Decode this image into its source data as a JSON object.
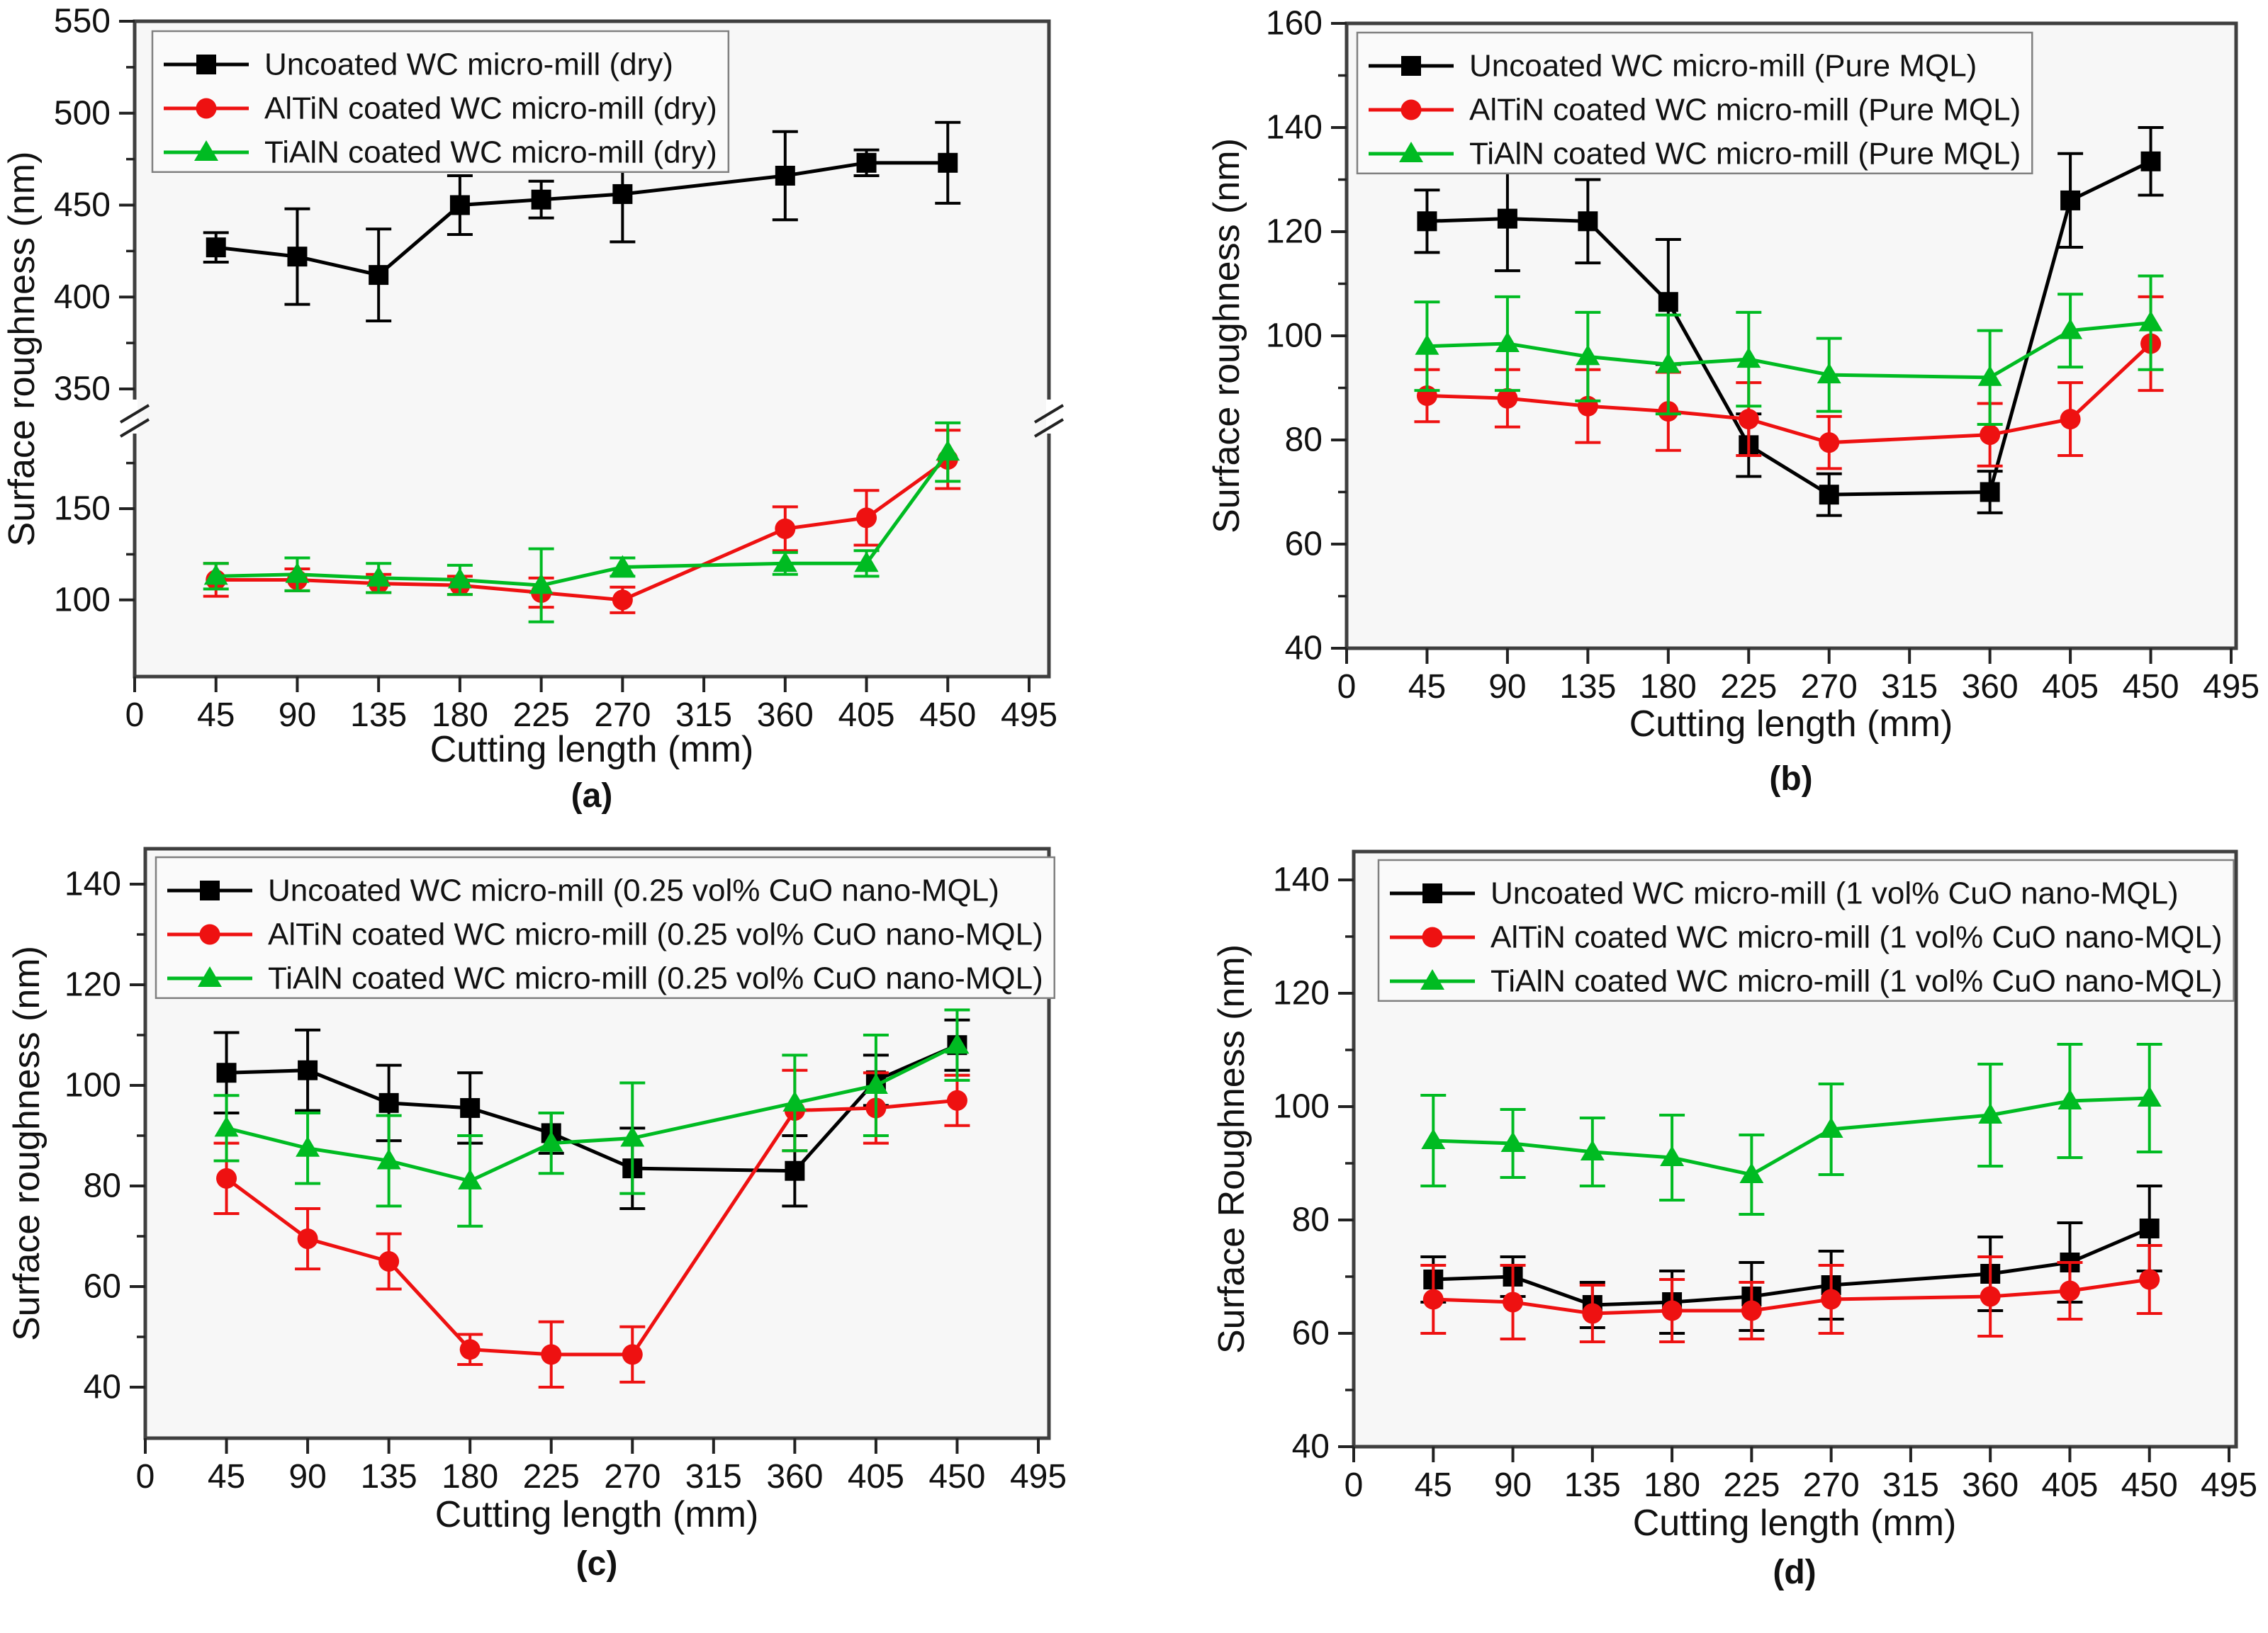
{
  "colors": {
    "black": "#000000",
    "red": "#ee1111",
    "green": "#00bb22",
    "frame": "#3f3f3f",
    "tick": "#222222",
    "text": "#111111",
    "plot_bg": "#f7f7f7",
    "legend_bg": "#fafafa",
    "legend_border": "#808080"
  },
  "chart_data": [
    {
      "id": "a",
      "type": "line",
      "caption": "(a)",
      "xlabel": "Cutting length (mm)",
      "ylabel": "Surface roughness (nm)",
      "broken_axis": true,
      "xticks": [
        0,
        45,
        90,
        135,
        180,
        225,
        270,
        315,
        360,
        405,
        450,
        495
      ],
      "x": [
        45,
        90,
        135,
        180,
        225,
        270,
        360,
        405,
        450
      ],
      "yticks_lower": [
        100,
        150
      ],
      "yticks_upper": [
        350,
        400,
        450,
        500,
        550
      ],
      "legend_position": "top-left",
      "series": [
        {
          "name": "Uncoated WC micro-mill (dry)",
          "color_key": "black",
          "marker": "square",
          "values": [
            427,
            422,
            412,
            450,
            453,
            456,
            466,
            473,
            473
          ],
          "errors": [
            8,
            26,
            25,
            16,
            10,
            26,
            24,
            7,
            22
          ]
        },
        {
          "name": "AlTiN coated WC  micro-mill (dry)",
          "color_key": "red",
          "marker": "circle",
          "values": [
            111,
            111,
            109,
            108,
            104,
            100,
            139,
            145,
            177
          ],
          "errors": [
            9,
            6,
            5,
            5,
            8,
            7,
            12,
            15,
            16
          ]
        },
        {
          "name": "TiAlN coated WC  micro-mill (dry)",
          "color_key": "green",
          "marker": "triangle",
          "values": [
            113,
            114,
            112,
            111,
            108,
            118,
            120,
            120,
            181
          ],
          "errors": [
            7,
            9,
            8,
            8,
            20,
            5,
            6,
            7,
            16
          ]
        }
      ]
    },
    {
      "id": "b",
      "type": "line",
      "caption": "(b)",
      "xlabel": "Cutting length (mm)",
      "ylabel": "Surface roughness (nm)",
      "broken_axis": false,
      "xticks": [
        0,
        45,
        90,
        135,
        180,
        225,
        270,
        315,
        360,
        405,
        450,
        495
      ],
      "x": [
        45,
        90,
        135,
        180,
        225,
        270,
        360,
        405,
        450
      ],
      "yticks": [
        40,
        60,
        80,
        100,
        120,
        140,
        160
      ],
      "ylim": [
        40,
        160
      ],
      "legend_position": "top-left",
      "series": [
        {
          "name": "Uncoated WC micro-mill (Pure MQL)",
          "color_key": "black",
          "marker": "square",
          "values": [
            122,
            122.5,
            122,
            106.5,
            79,
            69.5,
            70,
            126,
            133.5
          ],
          "errors": [
            6,
            10,
            8,
            12,
            6,
            4,
            4,
            9,
            6.5
          ]
        },
        {
          "name": "AlTiN coated WC micro-mill (Pure MQL)",
          "color_key": "red",
          "marker": "circle",
          "values": [
            88.5,
            88,
            86.5,
            85.5,
            84,
            79.5,
            81,
            84,
            98.5
          ],
          "errors": [
            5,
            5.5,
            7,
            7.5,
            7,
            5,
            6,
            7,
            9
          ]
        },
        {
          "name": "TiAlN coated WC  micro-mill (Pure MQL)",
          "color_key": "green",
          "marker": "triangle",
          "values": [
            98,
            98.5,
            96,
            94.5,
            95.5,
            92.5,
            92,
            101,
            102.5
          ],
          "errors": [
            8.5,
            9,
            8.5,
            9.5,
            9,
            7,
            9,
            7,
            9
          ]
        }
      ]
    },
    {
      "id": "c",
      "type": "line",
      "caption": "(c)",
      "xlabel": "Cutting length (mm)",
      "ylabel": "Surface roughness (nm)",
      "broken_axis": false,
      "xticks": [
        0,
        45,
        90,
        135,
        180,
        225,
        270,
        315,
        360,
        405,
        450,
        495
      ],
      "x": [
        45,
        90,
        135,
        180,
        225,
        270,
        360,
        405,
        450
      ],
      "yticks": [
        40,
        60,
        80,
        100,
        120,
        140
      ],
      "ylim": [
        30,
        146
      ],
      "legend_position": "top-left",
      "series": [
        {
          "name": "Uncoated WC micro-mill (0.25 vol% CuO nano-MQL)",
          "color_key": "black",
          "marker": "square",
          "values": [
            102.5,
            103,
            96.5,
            95.5,
            90.5,
            83.5,
            83,
            101,
            108
          ],
          "errors": [
            8,
            8,
            7.5,
            7,
            4,
            8,
            7,
            5,
            5
          ]
        },
        {
          "name": "AlTiN coated WC micro-mill (0.25 vol% CuO nano-MQL)",
          "color_key": "red",
          "marker": "circle",
          "values": [
            81.5,
            69.5,
            65,
            47.5,
            46.5,
            46.5,
            95,
            95.5,
            97
          ],
          "errors": [
            7,
            6,
            5.5,
            3,
            6.5,
            5.5,
            8,
            7,
            5
          ]
        },
        {
          "name": "TiAlN coated WC micro-mill (0.25 vol% CuO nano-MQL)",
          "color_key": "green",
          "marker": "triangle",
          "values": [
            91.5,
            87.5,
            85,
            81,
            88.5,
            89.5,
            96.5,
            100,
            108
          ],
          "errors": [
            6.5,
            7,
            9,
            9,
            6,
            11,
            9.5,
            10,
            7
          ]
        }
      ]
    },
    {
      "id": "d",
      "type": "line",
      "caption": "(d)",
      "xlabel": "Cutting length (mm)",
      "ylabel": "Surface Roughness (nm)",
      "broken_axis": false,
      "xticks": [
        0,
        45,
        90,
        135,
        180,
        225,
        270,
        315,
        360,
        405,
        450,
        495
      ],
      "x": [
        45,
        90,
        135,
        180,
        225,
        270,
        360,
        405,
        450
      ],
      "yticks": [
        40,
        60,
        80,
        100,
        120,
        140
      ],
      "ylim": [
        40,
        145
      ],
      "legend_position": "top-left",
      "series": [
        {
          "name": "Uncoated WC micro-mill (1 vol% CuO nano-MQL)",
          "color_key": "black",
          "marker": "square",
          "values": [
            69.5,
            70,
            65,
            65.5,
            66.5,
            68.5,
            70.5,
            72.5,
            78.5
          ],
          "errors": [
            4,
            3.5,
            4,
            5.5,
            6,
            6,
            6.5,
            7,
            7.5
          ]
        },
        {
          "name": "AlTiN coated WC micro-mill (1 vol% CuO nano-MQL)",
          "color_key": "red",
          "marker": "circle",
          "values": [
            66,
            65.5,
            63.5,
            64,
            64,
            66,
            66.5,
            67.5,
            69.5
          ],
          "errors": [
            6,
            6.5,
            5,
            5.5,
            5,
            6,
            7,
            5,
            6
          ]
        },
        {
          "name": "TiAlN coated WC micro-mill (1 vol% CuO nano-MQL)",
          "color_key": "green",
          "marker": "triangle",
          "values": [
            94,
            93.5,
            92,
            91,
            88,
            96,
            98.5,
            101,
            101.5
          ],
          "errors": [
            8,
            6,
            6,
            7.5,
            7,
            8,
            9,
            10,
            9.5
          ]
        }
      ]
    }
  ]
}
